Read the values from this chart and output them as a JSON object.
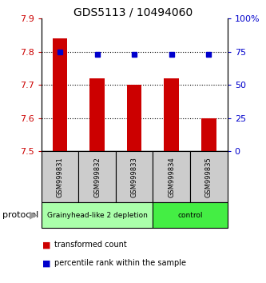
{
  "title": "GDS5113 / 10494060",
  "samples": [
    "GSM999831",
    "GSM999832",
    "GSM999833",
    "GSM999834",
    "GSM999835"
  ],
  "bar_values": [
    7.84,
    7.72,
    7.7,
    7.72,
    7.6
  ],
  "dot_values": [
    75,
    73,
    73,
    73,
    73
  ],
  "bar_base": 7.5,
  "ylim_left": [
    7.5,
    7.9
  ],
  "ylim_right": [
    0,
    100
  ],
  "yticks_left": [
    7.5,
    7.6,
    7.7,
    7.8,
    7.9
  ],
  "yticks_right": [
    0,
    25,
    50,
    75,
    100
  ],
  "bar_color": "#cc0000",
  "dot_color": "#0000cc",
  "gridline_y": [
    7.6,
    7.7,
    7.8
  ],
  "groups": [
    {
      "label": "Grainyhead-like 2 depletion",
      "indices": [
        0,
        1,
        2
      ],
      "color": "#aaffaa"
    },
    {
      "label": "control",
      "indices": [
        3,
        4
      ],
      "color": "#44ee44"
    }
  ],
  "protocol_label": "protocol",
  "legend_items": [
    {
      "color": "#cc0000",
      "label": "transformed count"
    },
    {
      "color": "#0000cc",
      "label": "percentile rank within the sample"
    }
  ],
  "fig_width": 3.33,
  "fig_height": 3.54,
  "dpi": 100
}
